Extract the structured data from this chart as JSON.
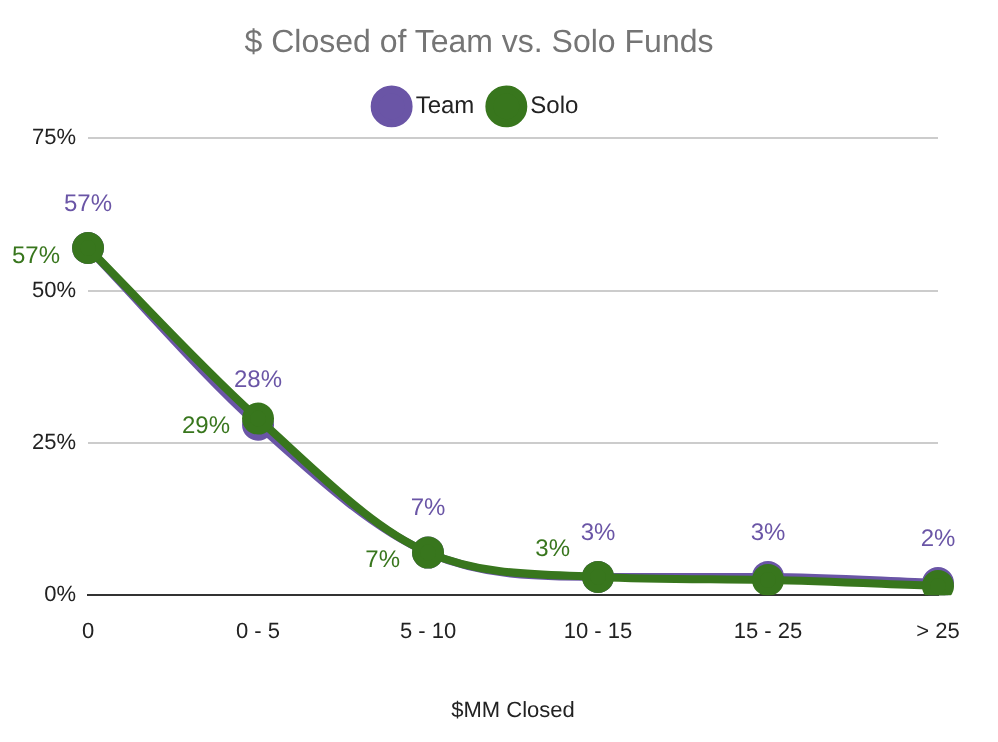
{
  "chart_data": {
    "type": "line",
    "title": "$ Closed of Team vs. Solo Funds",
    "xlabel": "$MM Closed",
    "categories": [
      "0",
      "0 - 5",
      "5 - 10",
      "10 - 15",
      "15 - 25",
      "> 25"
    ],
    "series": [
      {
        "name": "Team",
        "color": "#6a55a6",
        "values": [
          57,
          28,
          7,
          3,
          3,
          2
        ],
        "value_labels": [
          "57%",
          "28%",
          "7%",
          "3%",
          "3%",
          "2%"
        ]
      },
      {
        "name": "Solo",
        "color": "#38761d",
        "values": [
          57,
          29,
          7,
          3,
          2.5,
          1.5
        ],
        "value_labels": [
          "57%",
          "29%",
          "7%",
          "3%",
          null,
          null
        ]
      }
    ],
    "ylim": [
      0,
      75
    ],
    "yticks": [
      {
        "value": 0,
        "label": "0%"
      },
      {
        "value": 25,
        "label": "25%"
      },
      {
        "value": 50,
        "label": "50%"
      },
      {
        "value": 75,
        "label": "75%"
      }
    ],
    "grid": "y",
    "legend": "top",
    "marker": "circle",
    "line_style": "solid"
  }
}
